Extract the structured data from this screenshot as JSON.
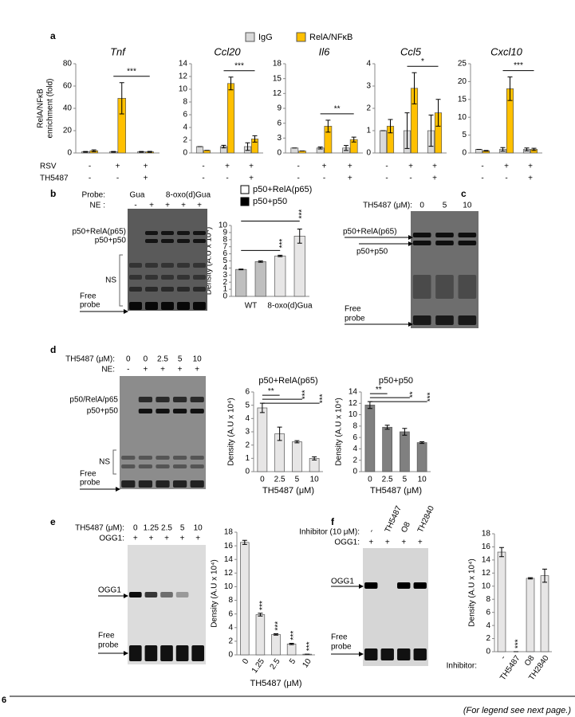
{
  "panel_labels": [
    "a",
    "b",
    "c",
    "d",
    "e",
    "f"
  ],
  "conditions": {
    "labels": [
      "RSV",
      "TH5487"
    ],
    "rows": [
      [
        "-",
        "+",
        "+"
      ],
      [
        "-",
        "-",
        "+"
      ]
    ]
  },
  "chart_data": [
    {
      "type": "bar",
      "title": "Tnf",
      "ylabel": [
        "RelA/NFκB",
        "enrichment (fold)"
      ],
      "categories": [
        null,
        null,
        null
      ],
      "series": [
        {
          "name": "IgG",
          "color": "#d9d9d9",
          "values": [
            1,
            1,
            1
          ],
          "errors": [
            0.3,
            0.3,
            0.3
          ]
        },
        {
          "name": "RelA/NFκB",
          "color": "#ffc000",
          "values": [
            2,
            49,
            1
          ],
          "errors": [
            0.8,
            14,
            0.4
          ]
        }
      ],
      "ylim": [
        0,
        80
      ],
      "yticks": [
        0,
        20,
        40,
        60,
        80
      ],
      "significance": "***"
    },
    {
      "type": "bar",
      "title": "Ccl20",
      "categories": [
        null,
        null,
        null
      ],
      "series": [
        {
          "color": "#d9d9d9",
          "values": [
            1,
            1,
            1
          ],
          "errors": [
            0,
            0.2,
            0.6
          ]
        },
        {
          "color": "#ffc000",
          "values": [
            0.4,
            10.9,
            2.2
          ],
          "errors": [
            0,
            1,
            0.5
          ]
        }
      ],
      "ylim": [
        0,
        14
      ],
      "yticks": [
        0,
        2,
        4,
        6,
        8,
        10,
        12,
        14
      ],
      "significance": "***"
    },
    {
      "type": "bar",
      "title": "Il6",
      "categories": [
        null,
        null,
        null
      ],
      "series": [
        {
          "color": "#d9d9d9",
          "values": [
            1,
            1,
            1
          ],
          "errors": [
            0,
            0.2,
            0.5
          ]
        },
        {
          "color": "#ffc000",
          "values": [
            0.4,
            5.4,
            2.7
          ],
          "errors": [
            0,
            1.2,
            0.5
          ]
        }
      ],
      "ylim": [
        0,
        18
      ],
      "yticks": [
        0,
        3,
        6,
        9,
        12,
        15,
        18
      ],
      "significance": "**"
    },
    {
      "type": "bar",
      "title": "Ccl5",
      "categories": [
        null,
        null,
        null
      ],
      "series": [
        {
          "color": "#d9d9d9",
          "values": [
            1,
            1,
            1
          ],
          "errors": [
            0,
            0.8,
            0.7
          ]
        },
        {
          "color": "#ffc000",
          "values": [
            1.2,
            2.9,
            1.8
          ],
          "errors": [
            0.3,
            0.7,
            0.6
          ]
        }
      ],
      "ylim": [
        0,
        4
      ],
      "yticks": [
        0,
        1,
        2,
        3,
        4
      ],
      "significance": "*"
    },
    {
      "type": "bar",
      "title": "Cxcl10",
      "categories": [
        null,
        null,
        null
      ],
      "series": [
        {
          "color": "#d9d9d9",
          "values": [
            1,
            1,
            1
          ],
          "errors": [
            0,
            0.5,
            0.4
          ]
        },
        {
          "color": "#ffc000",
          "values": [
            0.6,
            18,
            1
          ],
          "errors": [
            0.1,
            3.3,
            0.3
          ]
        }
      ],
      "ylim": [
        0,
        25
      ],
      "yticks": [
        0,
        5,
        10,
        15,
        20,
        25
      ],
      "significance": "***"
    },
    {
      "type": "bar",
      "ylabel": "Density (A.U x 10⁴)",
      "categories": [
        null,
        null,
        null,
        null
      ],
      "group_labels": [
        "WT",
        "8-oxo(d)Gua"
      ],
      "values": [
        3.8,
        4.9,
        5.7,
        8.5
      ],
      "errors": [
        0.05,
        0.1,
        0.1,
        1
      ],
      "colors": [
        "#bfbfbf",
        "#bfbfbf",
        "#e7e6e6",
        "#e7e6e6"
      ],
      "legend": [
        {
          "name": "p50+RelA(p65)",
          "color": "#ffffff"
        },
        {
          "name": "p50+p50",
          "color": "#000000"
        }
      ],
      "ylim": [
        0,
        10
      ],
      "yticks": [
        0,
        1,
        2,
        3,
        4,
        5,
        6,
        7,
        8,
        9,
        10
      ],
      "significance": [
        "***",
        "***"
      ]
    },
    {
      "type": "bar",
      "title": "p50+RelA(p65)",
      "ylabel": "Density (A.U x 10⁴)",
      "xlabel": "TH5487 (μM)",
      "categories": [
        "0",
        "2.5",
        "5",
        "10"
      ],
      "values": [
        4.8,
        2.85,
        2.25,
        1.0
      ],
      "errors": [
        0.35,
        0.5,
        0.08,
        0.12
      ],
      "color": "#e7e6e6",
      "ylim": [
        0,
        6
      ],
      "yticks": [
        0,
        1,
        2,
        3,
        4,
        5,
        6
      ],
      "significance": [
        "**",
        "***",
        "***"
      ]
    },
    {
      "type": "bar",
      "title": "p50+p50",
      "ylabel": "Density (A.U x 10⁴)",
      "xlabel": "TH5487 (μM)",
      "categories": [
        "0",
        "2.5",
        "5",
        "10"
      ],
      "values": [
        11.7,
        7.8,
        7.0,
        5.1
      ],
      "errors": [
        0.6,
        0.35,
        0.6,
        0.15
      ],
      "color": "#808080",
      "ylim": [
        0,
        14
      ],
      "yticks": [
        0,
        2,
        4,
        6,
        8,
        10,
        12,
        14
      ],
      "significance": [
        "**",
        "**",
        "***"
      ]
    },
    {
      "type": "bar",
      "ylabel": "Density (A.U x 10⁴)",
      "xlabel": "TH5487 (μM)",
      "categories": [
        "0",
        "1.25",
        "2.5",
        "5",
        "10"
      ],
      "values": [
        16.5,
        5.9,
        3.0,
        1.6,
        0.1
      ],
      "errors": [
        0.3,
        0.2,
        0.1,
        0.1,
        0
      ],
      "color": "#e7e6e6",
      "ylim": [
        0,
        18
      ],
      "yticks": [
        0,
        2,
        4,
        6,
        8,
        10,
        12,
        14,
        16,
        18
      ],
      "value_annotations": [
        null,
        "***",
        "***",
        "***",
        "***"
      ]
    },
    {
      "type": "bar",
      "ylabel": "Density (A.U x 10⁴)",
      "category_label": "Inhibitor:",
      "categories": [
        "-",
        "TH5487",
        "O8",
        "TH2840"
      ],
      "values": [
        15.2,
        0,
        11.2,
        11.6
      ],
      "errors": [
        0.7,
        0,
        0.1,
        1
      ],
      "color": "#e7e6e6",
      "ylim": [
        0,
        18
      ],
      "yticks": [
        0,
        2,
        4,
        6,
        8,
        10,
        12,
        14,
        16,
        18
      ],
      "value_annotations": [
        null,
        "***",
        null,
        null
      ]
    }
  ],
  "gels": {
    "b": {
      "probe_label": "Probe:",
      "probes": [
        "Gua",
        "8-oxo(d)Gua"
      ],
      "ne_label": "NE :",
      "ne": [
        "-",
        "+",
        "+",
        "+",
        "+"
      ],
      "bands": [
        "p50+RelA(p65)",
        "p50+p50"
      ],
      "ns": "NS",
      "free_probe": [
        "Free",
        "probe"
      ]
    },
    "c": {
      "treatment_label": "TH5487 (μM):",
      "doses": [
        "0",
        "5",
        "10"
      ],
      "bands": [
        "p50+RelA(p65)",
        "p50+p50"
      ],
      "free_probe": [
        "Free",
        "probe"
      ]
    },
    "d": {
      "treatment_label": "TH5487 (μM):",
      "doses": [
        "0",
        "0",
        "2.5",
        "5",
        "10"
      ],
      "ne_label": "NE:",
      "ne": [
        "-",
        "+",
        "+",
        "+",
        "+"
      ],
      "bands": [
        "p50/RelA/p65",
        "p50+p50"
      ],
      "ns": "NS",
      "free_probe": [
        "Free",
        "probe"
      ]
    },
    "e": {
      "treatment_label": "TH5487 (μM):",
      "doses": [
        "0",
        "1.25",
        "2.5",
        "5",
        "10"
      ],
      "ogg1_label": "OGG1:",
      "ogg1": [
        "+",
        "+",
        "+",
        "+",
        "+"
      ],
      "bands": [
        "OGG1"
      ],
      "free_probe": [
        "Free",
        "probe"
      ]
    },
    "f": {
      "treatment_label": "Inhibitor (10 μM):",
      "doses": [
        "-",
        "TH5487",
        "O8",
        "TH2840"
      ],
      "ogg1_label": "OGG1:",
      "ogg1": [
        "+",
        "+",
        "+",
        "+"
      ],
      "bands": [
        "OGG1"
      ],
      "free_probe": [
        "Free",
        "probe"
      ]
    }
  },
  "page_number": "6",
  "footer": "(For legend see next page.)"
}
